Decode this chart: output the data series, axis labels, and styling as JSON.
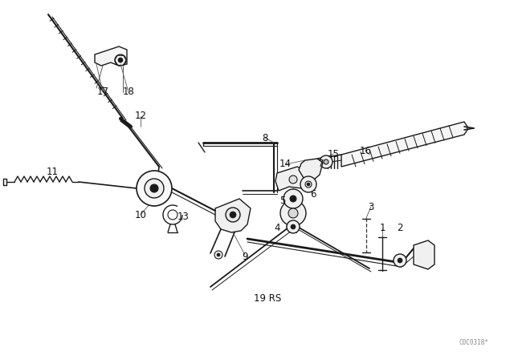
{
  "bg_color": "#ffffff",
  "line_color": "#1a1a1a",
  "watermark": "C0C0318*",
  "figsize": [
    6.4,
    4.48
  ],
  "dpi": 100
}
